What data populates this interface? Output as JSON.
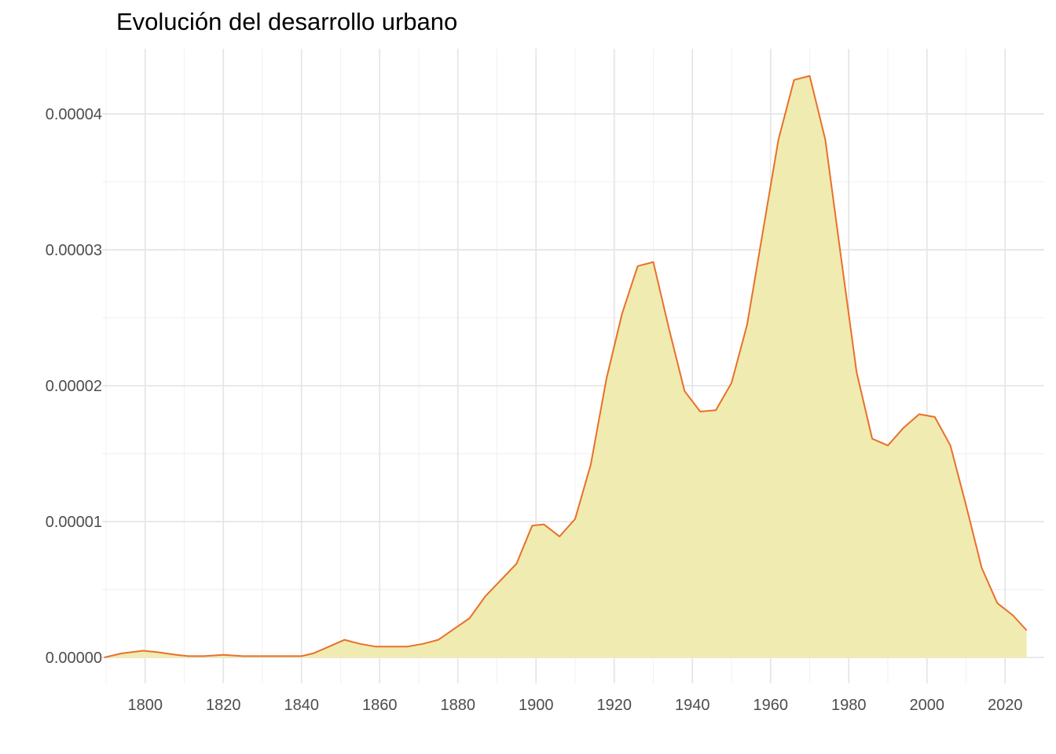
{
  "title": "Evolución del desarrollo urbano",
  "colors": {
    "fill": "#f0ebb0",
    "line": "#e8702a",
    "grid_major": "#e6e6e6",
    "grid_minor": "#f2f2f2",
    "tick_text": "#4d4d4d",
    "background": "#ffffff"
  },
  "chart_data": {
    "type": "area",
    "title": "Evolución del desarrollo urbano",
    "xlabel": "",
    "ylabel": "",
    "xlim": [
      1789,
      2030
    ],
    "ylim": [
      -1.9e-06,
      4.48e-05
    ],
    "grid": true,
    "legend": "none",
    "x_ticks": [
      1800,
      1820,
      1840,
      1860,
      1880,
      1900,
      1920,
      1940,
      1960,
      1980,
      2000,
      2020
    ],
    "x_tick_labels": [
      "1800",
      "1820",
      "1840",
      "1860",
      "1880",
      "1900",
      "1920",
      "1940",
      "1960",
      "1980",
      "2000",
      "2020"
    ],
    "y_ticks": [
      0,
      1e-05,
      2e-05,
      3e-05,
      4e-05
    ],
    "y_tick_labels": [
      "0.00000",
      "0.00001",
      "0.00002",
      "0.00003",
      "0.00004"
    ],
    "series": [
      {
        "x": [
          1789.5,
          1794,
          1799.5,
          1803,
          1808,
          1811,
          1815,
          1820,
          1825,
          1830,
          1835,
          1840,
          1843,
          1847,
          1851,
          1855,
          1859,
          1863,
          1867,
          1871,
          1875,
          1879,
          1883,
          1887,
          1891,
          1895,
          1899,
          1902,
          1906,
          1910,
          1914,
          1918,
          1922,
          1926,
          1930,
          1934,
          1938,
          1942,
          1946,
          1950,
          1954,
          1958,
          1962,
          1966,
          1970,
          1974,
          1978,
          1982,
          1986,
          1990,
          1994,
          1998,
          2002,
          2006,
          2010,
          2014,
          2018,
          2022,
          2025.5
        ],
        "y": [
          0.0,
          3e-07,
          5e-07,
          4e-07,
          2e-07,
          1e-07,
          1e-07,
          2e-07,
          1e-07,
          1e-07,
          1e-07,
          1e-07,
          3e-07,
          8e-07,
          1.3e-06,
          1e-06,
          8e-07,
          8e-07,
          8e-07,
          1e-06,
          1.3e-06,
          2.1e-06,
          2.9e-06,
          4.5e-06,
          5.7e-06,
          6.9e-06,
          9.7e-06,
          9.8e-06,
          8.9e-06,
          1.02e-05,
          1.42e-05,
          2.05e-05,
          2.53e-05,
          2.88e-05,
          2.91e-05,
          2.42e-05,
          1.96e-05,
          1.81e-05,
          1.82e-05,
          2.02e-05,
          2.45e-05,
          3.13e-05,
          3.81e-05,
          4.25e-05,
          4.28e-05,
          3.81e-05,
          2.95e-05,
          2.1e-05,
          1.61e-05,
          1.56e-05,
          1.69e-05,
          1.79e-05,
          1.77e-05,
          1.56e-05,
          1.12e-05,
          6.6e-06,
          4e-06,
          3.1e-06,
          2e-06
        ]
      }
    ]
  }
}
